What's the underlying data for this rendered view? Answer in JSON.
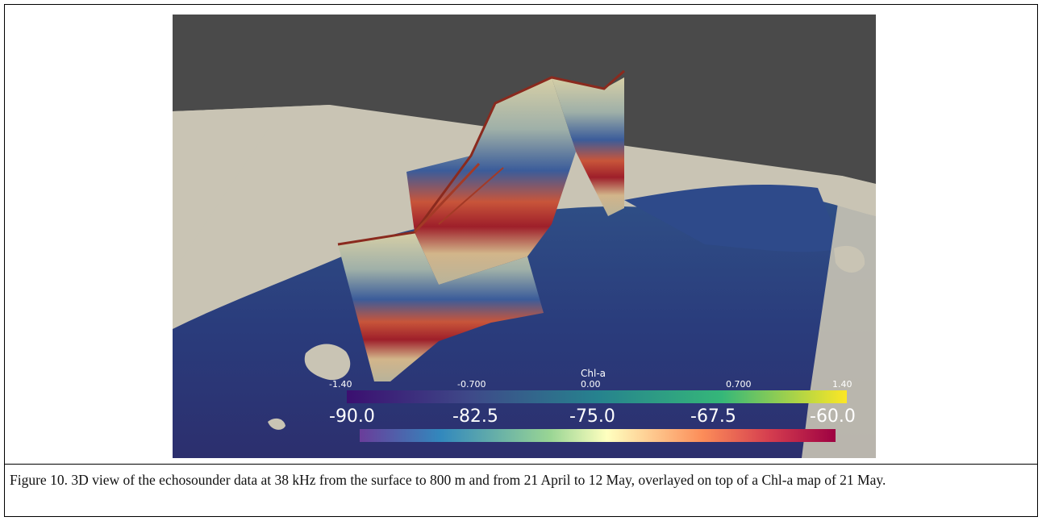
{
  "figure": {
    "chl_colorbar": {
      "title": "Chl-a",
      "ticks": [
        "-1.40",
        "-0.700",
        "0.00",
        "0.700",
        "1.40"
      ],
      "colors": [
        "#3b0f70",
        "#3e4a89",
        "#26828e",
        "#35b779",
        "#fde725"
      ]
    },
    "sv_colorbar": {
      "ticks": [
        "-90.0",
        "-82.5",
        "-75.0",
        "-67.5",
        "-60.0"
      ],
      "colors": [
        "#6a3d9a",
        "#3288bd",
        "#99d594",
        "#ffffbf",
        "#fc8d59",
        "#d53e4f",
        "#9e0142"
      ]
    },
    "background_color": "#4a4a4a",
    "land_color": "#c9c4b4",
    "ocean_color": "#2b3a7a"
  },
  "caption": "Figure 10. 3D view of the echosounder data at 38 kHz from the surface to 800 m and from 21 April to 12 May, overlayed on top of a Chl-a map of 21 May."
}
